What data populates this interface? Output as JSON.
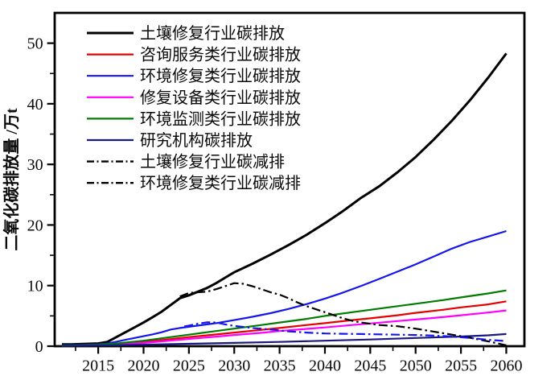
{
  "figure": {
    "background": "#ffffff",
    "frame_color": "#000000",
    "tick_color": "#000000",
    "text_color": "#0a0a0a"
  },
  "chart_data": {
    "type": "line",
    "title": "",
    "xlabel": "",
    "ylabel": "二氧化碳排放量 /万t",
    "xlim": [
      2010.2,
      2062.0
    ],
    "ylim": [
      0,
      55
    ],
    "x_ticks": [
      2015,
      2020,
      2025,
      2030,
      2035,
      2040,
      2045,
      2050,
      2055,
      2060
    ],
    "x_minor_ticks": [
      2012.5,
      2017.5,
      2022.5,
      2027.5,
      2032.5,
      2037.5,
      2042.5,
      2047.5,
      2052.5,
      2057.5
    ],
    "y_ticks": [
      0,
      10,
      20,
      30,
      40,
      50
    ],
    "y_minor_ticks": [
      5,
      15,
      25,
      35,
      45
    ],
    "grid": false,
    "legend_position": "top-left",
    "series": [
      {
        "name": "土壤修复行业碳排放",
        "color": "#000000",
        "legend_color": "#000000",
        "dash": "solid",
        "width": 3,
        "points": [
          [
            2011,
            0.3
          ],
          [
            2012,
            0.3
          ],
          [
            2013,
            0.35
          ],
          [
            2014,
            0.4
          ],
          [
            2015,
            0.45
          ],
          [
            2016,
            0.7
          ],
          [
            2017,
            1.5
          ],
          [
            2018,
            2.3
          ],
          [
            2019,
            3.1
          ],
          [
            2020,
            3.9
          ],
          [
            2021,
            4.8
          ],
          [
            2022,
            5.7
          ],
          [
            2023,
            6.8
          ],
          [
            2024,
            7.9
          ],
          [
            2025,
            8.4
          ],
          [
            2026,
            9.0
          ],
          [
            2027,
            9.6
          ],
          [
            2028,
            10.4
          ],
          [
            2029,
            11.3
          ],
          [
            2030,
            12.2
          ],
          [
            2032,
            13.6
          ],
          [
            2034,
            15.1
          ],
          [
            2036,
            16.7
          ],
          [
            2038,
            18.4
          ],
          [
            2040,
            20.3
          ],
          [
            2042,
            22.3
          ],
          [
            2044,
            24.5
          ],
          [
            2046,
            26.4
          ],
          [
            2048,
            28.7
          ],
          [
            2050,
            31.2
          ],
          [
            2052,
            34.1
          ],
          [
            2054,
            37.2
          ],
          [
            2056,
            40.6
          ],
          [
            2058,
            44.3
          ],
          [
            2060,
            48.3
          ]
        ]
      },
      {
        "name": "咨询服务类行业碳排放",
        "color": "#e60000",
        "legend_color": "#e60000",
        "dash": "solid",
        "width": 2.2,
        "points": [
          [
            2011,
            0.1
          ],
          [
            2013,
            0.15
          ],
          [
            2015,
            0.2
          ],
          [
            2017,
            0.4
          ],
          [
            2020,
            0.7
          ],
          [
            2022,
            1.0
          ],
          [
            2025,
            1.5
          ],
          [
            2027,
            1.8
          ],
          [
            2030,
            2.25
          ],
          [
            2033,
            2.7
          ],
          [
            2035,
            3.0
          ],
          [
            2038,
            3.5
          ],
          [
            2040,
            3.8
          ],
          [
            2043,
            4.3
          ],
          [
            2045,
            4.6
          ],
          [
            2048,
            5.1
          ],
          [
            2050,
            5.5
          ],
          [
            2053,
            6.0
          ],
          [
            2055,
            6.4
          ],
          [
            2058,
            6.9
          ],
          [
            2060,
            7.4
          ]
        ]
      },
      {
        "name": "环境修复类行业碳排放",
        "color": "#1515ee",
        "legend_color": "#1515ee",
        "dash": "solid",
        "width": 2.2,
        "points": [
          [
            2011,
            0.15
          ],
          [
            2013,
            0.2
          ],
          [
            2015,
            0.3
          ],
          [
            2016,
            0.45
          ],
          [
            2017,
            0.75
          ],
          [
            2018,
            1.05
          ],
          [
            2019,
            1.35
          ],
          [
            2020,
            1.65
          ],
          [
            2021,
            1.95
          ],
          [
            2022,
            2.3
          ],
          [
            2023,
            2.75
          ],
          [
            2024,
            3.0
          ],
          [
            2025,
            3.2
          ],
          [
            2026,
            3.4
          ],
          [
            2028,
            3.8
          ],
          [
            2030,
            4.3
          ],
          [
            2032,
            4.85
          ],
          [
            2034,
            5.45
          ],
          [
            2036,
            6.15
          ],
          [
            2038,
            6.95
          ],
          [
            2040,
            7.85
          ],
          [
            2042,
            8.85
          ],
          [
            2044,
            9.95
          ],
          [
            2046,
            11.1
          ],
          [
            2048,
            12.3
          ],
          [
            2050,
            13.5
          ],
          [
            2052,
            14.8
          ],
          [
            2054,
            16.1
          ],
          [
            2056,
            17.2
          ],
          [
            2058,
            18.1
          ],
          [
            2060,
            19.0
          ]
        ]
      },
      {
        "name": "修复设备类行业碳排放",
        "color": "#ff00ff",
        "legend_color": "#ff00ff",
        "dash": "solid",
        "width": 2.2,
        "points": [
          [
            2011,
            0.08
          ],
          [
            2013,
            0.12
          ],
          [
            2015,
            0.15
          ],
          [
            2017,
            0.3
          ],
          [
            2020,
            0.55
          ],
          [
            2022,
            0.8
          ],
          [
            2025,
            1.2
          ],
          [
            2027,
            1.45
          ],
          [
            2030,
            1.85
          ],
          [
            2033,
            2.2
          ],
          [
            2035,
            2.5
          ],
          [
            2038,
            2.85
          ],
          [
            2040,
            3.1
          ],
          [
            2043,
            3.5
          ],
          [
            2045,
            3.75
          ],
          [
            2048,
            4.15
          ],
          [
            2050,
            4.4
          ],
          [
            2053,
            4.8
          ],
          [
            2055,
            5.1
          ],
          [
            2058,
            5.55
          ],
          [
            2060,
            5.9
          ]
        ]
      },
      {
        "name": "环境监测类行业碳排放",
        "color": "#007d00",
        "legend_color": "#007d00",
        "dash": "solid",
        "width": 2.2,
        "points": [
          [
            2011,
            0.12
          ],
          [
            2013,
            0.16
          ],
          [
            2015,
            0.22
          ],
          [
            2017,
            0.45
          ],
          [
            2020,
            0.9
          ],
          [
            2022,
            1.3
          ],
          [
            2025,
            1.9
          ],
          [
            2027,
            2.3
          ],
          [
            2030,
            2.9
          ],
          [
            2033,
            3.5
          ],
          [
            2035,
            3.9
          ],
          [
            2038,
            4.5
          ],
          [
            2040,
            5.0
          ],
          [
            2043,
            5.6
          ],
          [
            2045,
            6.0
          ],
          [
            2048,
            6.6
          ],
          [
            2050,
            7.0
          ],
          [
            2053,
            7.6
          ],
          [
            2055,
            8.05
          ],
          [
            2058,
            8.7
          ],
          [
            2060,
            9.2
          ]
        ]
      },
      {
        "name": "研究机构碳排放",
        "color": "#191980",
        "legend_color": "#191980",
        "dash": "solid",
        "width": 2.2,
        "points": [
          [
            2011,
            0.05
          ],
          [
            2015,
            0.1
          ],
          [
            2020,
            0.25
          ],
          [
            2025,
            0.4
          ],
          [
            2030,
            0.55
          ],
          [
            2035,
            0.7
          ],
          [
            2040,
            0.9
          ],
          [
            2045,
            1.1
          ],
          [
            2050,
            1.35
          ],
          [
            2055,
            1.6
          ],
          [
            2058,
            1.8
          ],
          [
            2060,
            2.0
          ]
        ]
      },
      {
        "name": "土壤修复行业碳减排",
        "color": "#000000",
        "legend_color": "#000000",
        "dash": "dashdot",
        "width": 2.2,
        "points": [
          [
            2024,
            8.2
          ],
          [
            2025,
            8.8
          ],
          [
            2026,
            8.9
          ],
          [
            2027,
            9.0
          ],
          [
            2028,
            9.4
          ],
          [
            2029,
            9.9
          ],
          [
            2030,
            10.4
          ],
          [
            2031,
            10.3
          ],
          [
            2032,
            9.9
          ],
          [
            2033,
            9.4
          ],
          [
            2034,
            8.9
          ],
          [
            2035,
            8.5
          ],
          [
            2036,
            7.9
          ],
          [
            2037,
            7.2
          ],
          [
            2038,
            6.6
          ],
          [
            2039,
            6.1
          ],
          [
            2040,
            5.6
          ],
          [
            2041,
            5.1
          ],
          [
            2042,
            4.6
          ],
          [
            2043,
            4.2
          ],
          [
            2044,
            3.9
          ],
          [
            2045,
            3.7
          ],
          [
            2046,
            3.5
          ],
          [
            2048,
            3.3
          ],
          [
            2050,
            2.9
          ],
          [
            2052,
            2.4
          ],
          [
            2054,
            1.9
          ],
          [
            2056,
            1.4
          ],
          [
            2058,
            0.8
          ],
          [
            2060,
            0.15
          ]
        ]
      },
      {
        "name": "环境修复类行业碳减排",
        "color": "#1515ee",
        "legend_color": "#000000",
        "dash": "dashdot",
        "width": 2.2,
        "points": [
          [
            2024.5,
            3.25
          ],
          [
            2025,
            3.4
          ],
          [
            2026,
            3.7
          ],
          [
            2027,
            3.95
          ],
          [
            2028,
            3.9
          ],
          [
            2029,
            3.6
          ],
          [
            2030,
            3.35
          ],
          [
            2032,
            3.0
          ],
          [
            2034,
            2.75
          ],
          [
            2036,
            2.45
          ],
          [
            2038,
            2.25
          ],
          [
            2040,
            2.1
          ],
          [
            2042,
            2.05
          ],
          [
            2044,
            2.0
          ],
          [
            2046,
            1.95
          ],
          [
            2048,
            1.9
          ],
          [
            2050,
            1.85
          ],
          [
            2052,
            1.75
          ],
          [
            2054,
            1.6
          ],
          [
            2056,
            1.35
          ],
          [
            2058,
            1.05
          ],
          [
            2060,
            0.85
          ]
        ]
      }
    ]
  }
}
